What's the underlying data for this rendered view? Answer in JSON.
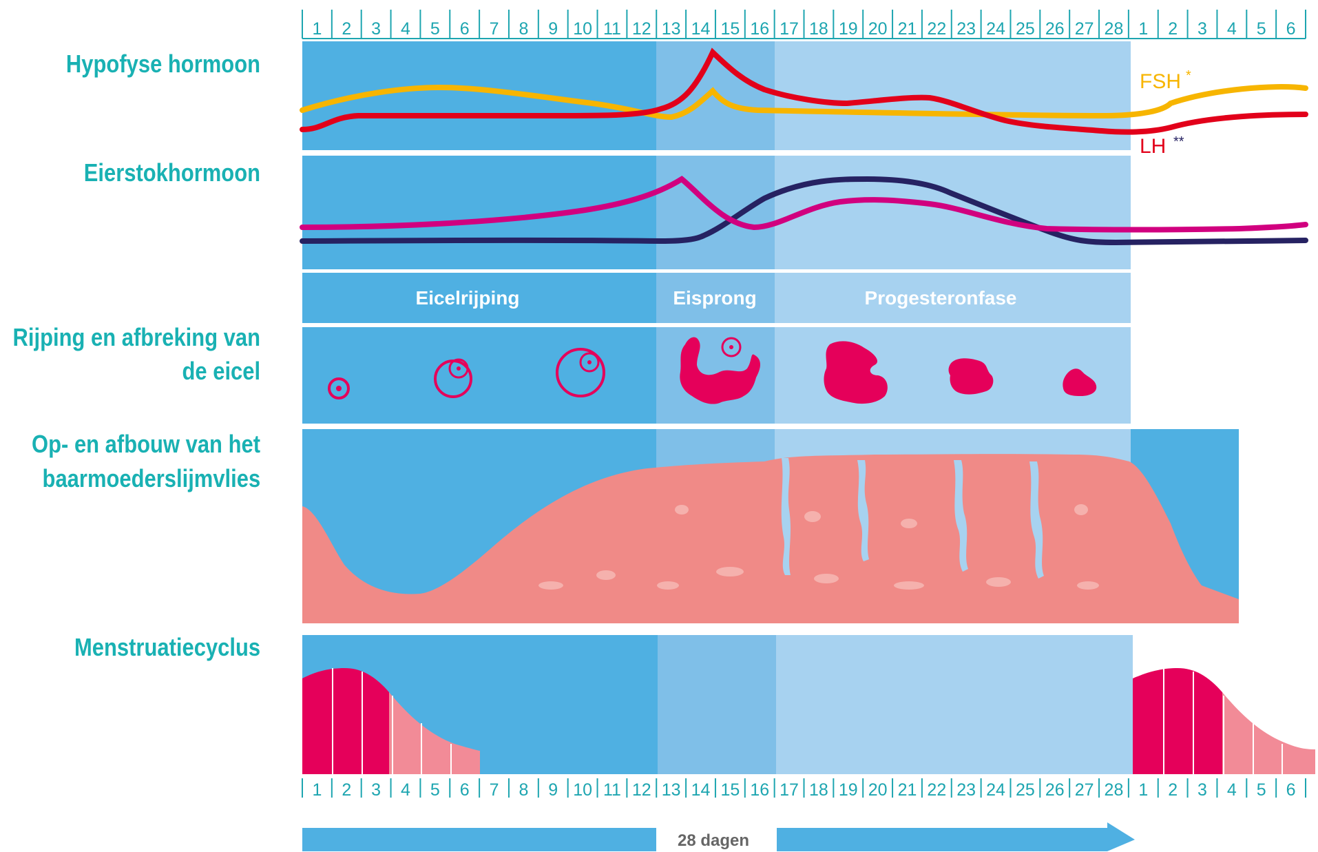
{
  "labels": {
    "pituitary": "Hypofyse hormoon",
    "ovarian": "Eierstokhormoon",
    "egg_line1": "Rijping en afbreking van",
    "egg_line2": "de eicel",
    "lining_line1": "Op- en afbouw van het",
    "lining_line2": "baarmoederslijmvlies",
    "menstrual": "Menstruatiecyclus"
  },
  "phases": [
    "Eicelrijping",
    "Eisprong",
    "Progesteronfase"
  ],
  "cycle_days": [
    "1",
    "2",
    "3",
    "4",
    "5",
    "6",
    "7",
    "8",
    "9",
    "10",
    "11",
    "12",
    "13",
    "14",
    "15",
    "16",
    "17",
    "18",
    "19",
    "20",
    "21",
    "22",
    "23",
    "24",
    "25",
    "26",
    "27",
    "28"
  ],
  "next_cycle_days": [
    "1",
    "2",
    "3",
    "4",
    "5",
    "6"
  ],
  "hormones": {
    "fsh": {
      "name": "FSH",
      "mark": "*",
      "color": "#f7b500"
    },
    "lh": {
      "name": "LH",
      "mark": "**",
      "color": "#e2001a"
    },
    "estrogen_color": "#d1007f",
    "progesterone_color": "#262262"
  },
  "duration": "28 dagen",
  "colors": {
    "phase1": "#4fb0e2",
    "phase2": "#7fbfe8",
    "phase3": "#a7d2f0",
    "day_text": "#1da5b0",
    "label": "#19b1b3",
    "egg": "#e5005a",
    "lining": "#f08a87",
    "lining_light": "#f5b1ad",
    "menses_dark": "#e5005a",
    "menses_light": "#f28b97"
  }
}
